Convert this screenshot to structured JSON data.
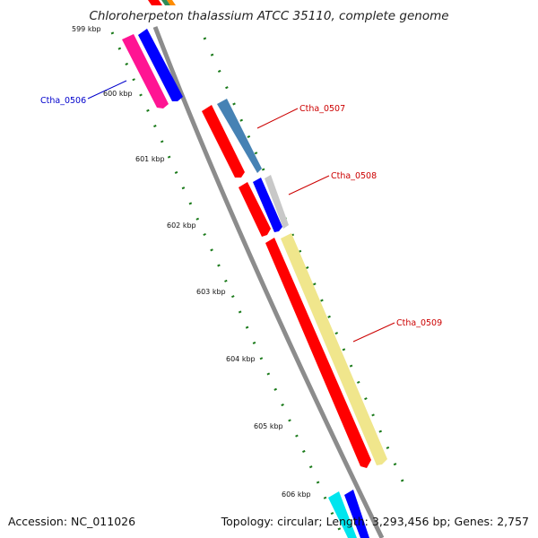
{
  "title": "Chloroherpeton thalassium ATCC 35110, complete genome",
  "footer": {
    "accession": "Accession: NC_011026",
    "summary": "Topology: circular; Length: 3,293,456 bp; Genes: 2,757"
  },
  "ticks": [
    "599 kbp",
    "600 kbp",
    "601 kbp",
    "602 kbp",
    "603 kbp",
    "604 kbp",
    "605 kbp",
    "606 kbp"
  ],
  "gene_labels": [
    "Ctha_0506",
    "Ctha_0507",
    "Ctha_0508",
    "Ctha_0509"
  ],
  "colors": {
    "backbone": "#8c8c8c",
    "tick": "#1a7a1a",
    "label_blue": "#0000cc",
    "label_red": "#cc0000",
    "red": "#ff0000",
    "blue": "#0000ff",
    "magenta": "#ff1493",
    "steelblue": "#4682b4",
    "silver": "#c8c8c8",
    "khaki": "#f0e68c",
    "cyan": "#00e5ee",
    "green": "#2e8b57",
    "orange": "#ff8c00"
  }
}
